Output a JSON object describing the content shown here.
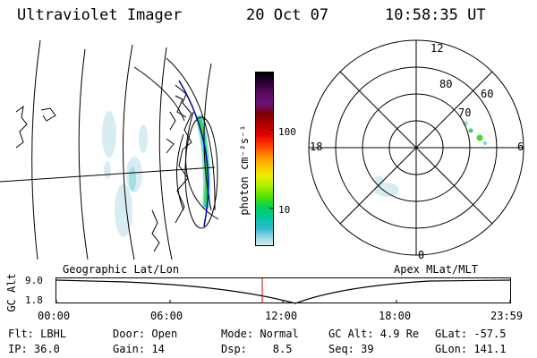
{
  "header": {
    "title": "Ultraviolet Imager",
    "date": "20 Oct 07",
    "time": "10:58:35 UT"
  },
  "colorbar": {
    "axis_label": "photon cm⁻²s⁻¹",
    "ticks": [
      "100",
      "10"
    ],
    "colors": [
      "#000000",
      "#2a0033",
      "#5a0a5a",
      "#6a0f7a",
      "#7a0000",
      "#b00000",
      "#e00000",
      "#ff3a00",
      "#ff8a00",
      "#ffc000",
      "#e8f000",
      "#a8f000",
      "#4ce000",
      "#00d060",
      "#00c8a0",
      "#30b8d0",
      "#90d8e0",
      "#d8eef0"
    ]
  },
  "polar_plot": {
    "ring_labels": [
      "80",
      "70",
      "60"
    ],
    "hour_labels": [
      "12",
      "18",
      "6",
      "0"
    ]
  },
  "map_label": "Geographic Lat/Lon",
  "polar_label": "Apex MLat/MLT",
  "timeline": {
    "axis_label": "GC Alt",
    "y_ticks": [
      "9.0",
      "1.8"
    ],
    "x_ticks": [
      "00:00",
      "06:00",
      "12:00",
      "18:00",
      "23:59"
    ]
  },
  "footer": {
    "row1": {
      "flt": "Flt: LBHL",
      "door": "Door: Open",
      "mode": "Mode: Normal",
      "gc_alt": "GC Alt: 4.9 Re",
      "glat": "GLat: -57.5"
    },
    "row2": {
      "ip": "IP: 36.0",
      "gain": "Gain: 14",
      "dsp": "Dsp:    8.5",
      "seq": "Seq: 39",
      "glon": "GLon: 141.1"
    }
  }
}
